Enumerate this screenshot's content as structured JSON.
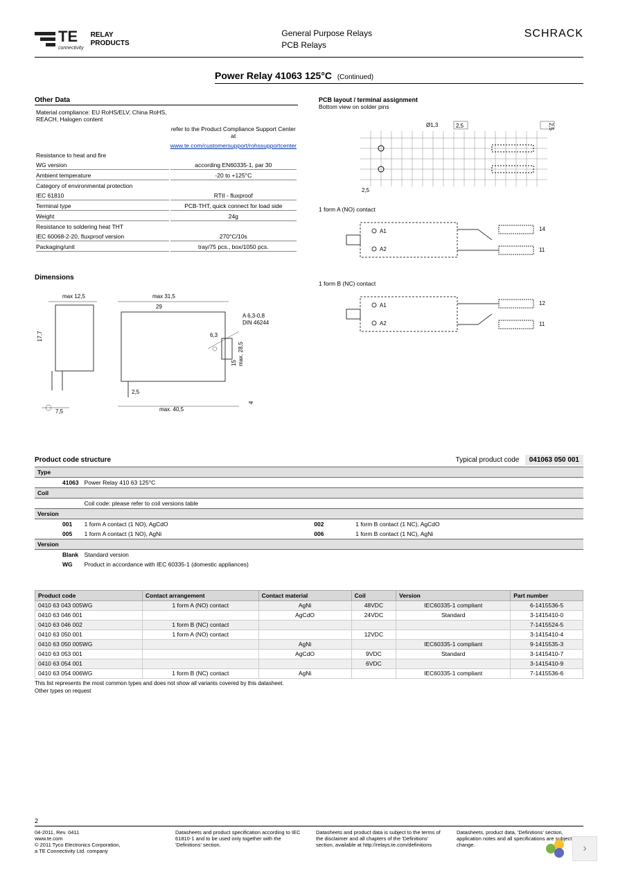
{
  "header": {
    "logo_text": "TE",
    "logo_sub": "connectivity",
    "relay_line1": "RELAY",
    "relay_line2": "PRODUCTS",
    "category_line1": "General Purpose Relays",
    "category_line2": "PCB Relays",
    "brand": "SCHRACK"
  },
  "title": {
    "main": "Power Relay 41063 125°C",
    "continued": "(Continued)"
  },
  "other_data": {
    "heading": "Other Data",
    "rows": [
      {
        "label": "Material compliance: EU RoHS/ELV, China RoHS, REACH, Halogen content",
        "value": ""
      },
      {
        "label": "",
        "value": "refer to the Product Compliance Support Center at"
      },
      {
        "label": "",
        "value": "www.te.com/customersupport/rohssupportcenter",
        "link": true
      },
      {
        "label": "Resistance to heat and fire",
        "value": "",
        "bordered": false
      },
      {
        "label": "  WG version",
        "value": "according EN60335-1, par 30",
        "bordered": true
      },
      {
        "label": "Ambient temperature",
        "value": "-20 to +125°C",
        "bordered": true
      },
      {
        "label": "Category of environmental protection",
        "value": ""
      },
      {
        "label": "  IEC 61810",
        "value": "RTII - fluxproof",
        "bordered": true
      },
      {
        "label": "Terminal type",
        "value": "PCB-THT, quick connect for load side",
        "bordered": true
      },
      {
        "label": "Weight",
        "value": "24g",
        "bordered": true
      },
      {
        "label": "Resistance to soldering heat THT",
        "value": ""
      },
      {
        "label": "  IEC 60068-2-20, fluxproof version",
        "value": "270°C/10s",
        "bordered": true
      },
      {
        "label": "Packaging/unit",
        "value": "tray/75 pcs., box/1050 pcs.",
        "bordered": true
      }
    ]
  },
  "dimensions": {
    "heading": "Dimensions",
    "labels": {
      "max_12_5": "max 12,5",
      "max_31_5": "max 31,5",
      "d29": "29",
      "a63": "A 6,3-0,8",
      "din": "DIN 46244",
      "d17_7": "17,7",
      "d6_3": "6,3",
      "d15": "15",
      "max_28_5": "max. 28,5",
      "d2_5": "2,5",
      "max_40_5": "max. 40,5",
      "d7_5": "7,5",
      "d4": "4"
    }
  },
  "pcb": {
    "heading": "PCB layout / terminal assignment",
    "sub": "Bottom view on solder pins",
    "grid": {
      "d1_3": "Ø1,3",
      "d2_5": "2,5",
      "d2_5v": "2,5"
    },
    "formA": {
      "label": "1 form A (NO) contact",
      "a1": "A1",
      "a2": "A2",
      "p14": "14",
      "p11": "11"
    },
    "formB": {
      "label": "1 form B (NC) contact",
      "a1": "A1",
      "a2": "A2",
      "p12": "12",
      "p11": "11"
    }
  },
  "pcs": {
    "heading": "Product code structure",
    "typical_label": "Typical product code",
    "typical_code": "041063  050  001",
    "sections": [
      {
        "head": "Type",
        "lines": [
          {
            "k": "41063",
            "v": "Power Relay 410 63 125°C"
          }
        ]
      },
      {
        "head": "Coil",
        "lines": [
          {
            "k": "",
            "v": "Coil code: please refer to coil versions table"
          }
        ]
      },
      {
        "head": "Version",
        "lines": [
          {
            "k": "001",
            "v": "1 form A contact (1 NO), AgCdO",
            "k2": "002",
            "v2": "1 form B contact (1 NC), AgCdO"
          },
          {
            "k": "005",
            "v": "1 form A contact (1 NO), AgNi",
            "k2": "006",
            "v2": "1 form B contact (1 NC), AgNi"
          }
        ]
      },
      {
        "head": "Version",
        "lines": [
          {
            "k": "Blank",
            "v": "Standard version"
          },
          {
            "k": "WG",
            "v": "Product in accordance with IEC 60335-1 (domestic appliances)"
          }
        ]
      }
    ]
  },
  "products": {
    "columns": [
      "Product code",
      "Contact arrangement",
      "Contact material",
      "Coil",
      "Version",
      "Part number"
    ],
    "rows": [
      [
        "0410 63 043 005WG",
        "1 form A (NO) contact",
        "AgNi",
        "48VDC",
        "IEC60335-1 compliant",
        "6-1415536-5"
      ],
      [
        "0410 63 046 001",
        "",
        "AgCdO",
        "24VDC",
        "Standard",
        "3-1415410-0"
      ],
      [
        "0410 63 046 002",
        "1 form B (NC) contact",
        "",
        "",
        "",
        "7-1415524-5"
      ],
      [
        "0410 63 050 001",
        "1 form A (NO) contact",
        "",
        "12VDC",
        "",
        "3-1415410-4"
      ],
      [
        "0410 63 050 005WG",
        "",
        "AgNi",
        "",
        "IEC60335-1 compliant",
        "9-1415535-3"
      ],
      [
        "0410 63 053 001",
        "",
        "AgCdO",
        "9VDC",
        "Standard",
        "3-1415410-7"
      ],
      [
        "0410 63 054 001",
        "",
        "",
        "6VDC",
        "",
        "3-1415410-9"
      ],
      [
        "0410 63 054 006WG",
        "1 form B (NC) contact",
        "AgNi",
        "",
        "IEC60335-1 compliant",
        "7-1415536-6"
      ]
    ],
    "note1": "This list represents the most common types and does not show all variants covered by this datasheet.",
    "note2": "Other types on request"
  },
  "footer": {
    "page": "2",
    "c1_l1": "04-2011, Rev. 0411",
    "c1_l2": "www.te.com",
    "c1_l3": "© 2011 Tyco Electronics Corporation,",
    "c1_l4": "a TE Connectivity Ltd. company",
    "c2": "Datasheets and product specification according to IEC 61810-1 and to be used only together with the 'Definitions' section.",
    "c3": "Datasheets and product data is subject to the terms of the disclaimer and all chapters of the 'Definitions' section, available at http://relays.te.com/definitions",
    "c4": "Datasheets, product data, 'Definitions' section, application notes and all specifications are subject to change."
  },
  "colors": {
    "bg": "#ffffff",
    "text": "#000000",
    "grid": "#cccccc",
    "shade": "#e0e0e0",
    "link": "#0033aa"
  }
}
